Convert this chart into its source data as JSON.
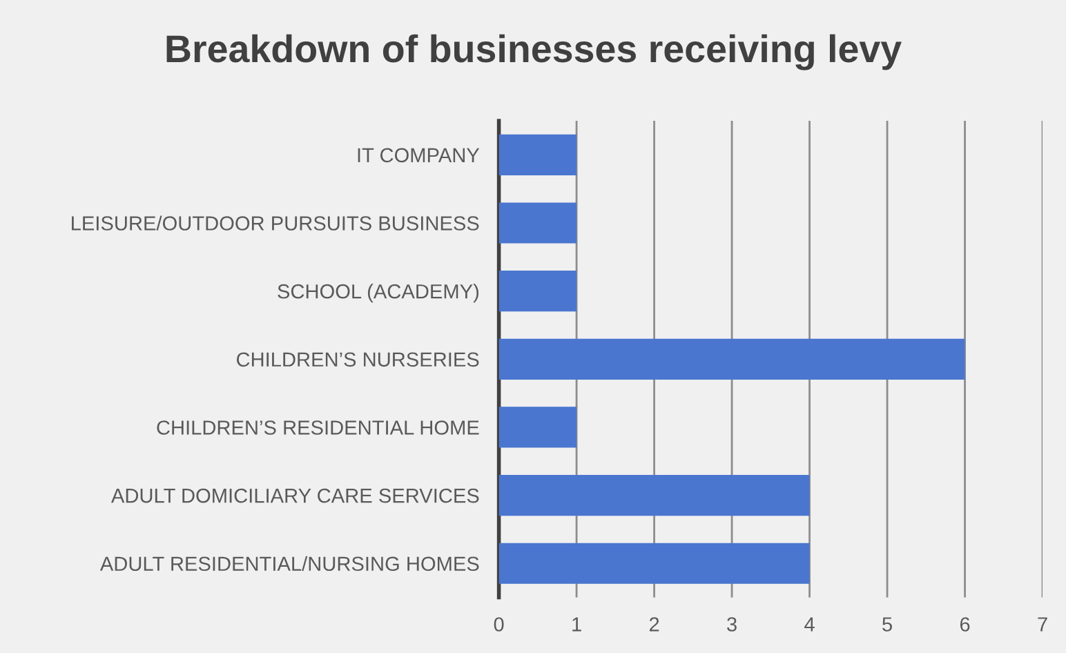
{
  "chart_data": {
    "type": "bar",
    "orientation": "horizontal",
    "title": "Breakdown of businesses receiving levy",
    "categories": [
      "IT COMPANY",
      "LEISURE/OUTDOOR PURSUITS BUSINESS",
      "SCHOOL (ACADEMY)",
      "CHILDREN’S NURSERIES",
      "CHILDREN’S RESIDENTIAL HOME",
      "ADULT DOMICILIARY CARE SERVICES",
      "ADULT RESIDENTIAL/NURSING HOMES"
    ],
    "values": [
      1,
      1,
      1,
      6,
      1,
      4,
      4
    ],
    "color": "#4a76cf",
    "xlim": [
      0,
      7
    ],
    "xticks": [
      0,
      1,
      2,
      3,
      4,
      5,
      6,
      7
    ],
    "grid": "x"
  }
}
